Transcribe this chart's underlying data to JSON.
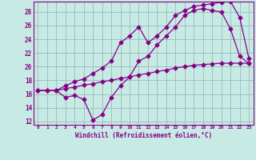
{
  "line1_x": [
    0,
    1,
    2,
    3,
    4,
    5,
    6,
    7,
    8,
    9,
    10,
    11,
    12,
    13,
    14,
    15,
    16,
    17,
    18,
    19,
    20,
    21,
    22,
    23
  ],
  "line1_y": [
    16.5,
    16.5,
    16.5,
    17.2,
    17.8,
    18.2,
    19.0,
    19.8,
    20.8,
    23.5,
    24.5,
    25.8,
    23.5,
    24.5,
    25.8,
    27.5,
    28.2,
    28.8,
    29.0,
    29.2,
    29.4,
    29.5,
    27.2,
    21.2
  ],
  "line2_x": [
    0,
    1,
    2,
    3,
    4,
    5,
    6,
    7,
    8,
    9,
    10,
    11,
    12,
    13,
    14,
    15,
    16,
    17,
    18,
    19,
    20,
    21,
    22,
    23
  ],
  "line2_y": [
    16.5,
    16.5,
    16.5,
    16.8,
    17.0,
    17.3,
    17.5,
    17.8,
    18.0,
    18.3,
    18.5,
    18.8,
    19.0,
    19.3,
    19.5,
    19.8,
    20.0,
    20.2,
    20.3,
    20.4,
    20.5,
    20.5,
    20.5,
    20.5
  ],
  "line3_x": [
    0,
    1,
    2,
    3,
    4,
    5,
    6,
    7,
    8,
    9,
    10,
    11,
    12,
    13,
    14,
    15,
    16,
    17,
    18,
    19,
    20,
    21,
    22,
    23
  ],
  "line3_y": [
    16.5,
    16.5,
    16.5,
    15.5,
    15.8,
    15.2,
    12.2,
    13.0,
    15.5,
    17.2,
    18.5,
    20.8,
    21.5,
    23.2,
    24.5,
    25.8,
    27.5,
    28.2,
    28.5,
    28.2,
    28.0,
    25.5,
    21.5,
    20.5
  ],
  "line_color": "#880088",
  "bg_color": "#c8eae4",
  "grid_color": "#99bbbb",
  "xlabel": "Windchill (Refroidissement éolien,°C)",
  "xlim_min": -0.5,
  "xlim_max": 23.5,
  "ylim_min": 11.5,
  "ylim_max": 29.5,
  "yticks": [
    12,
    14,
    16,
    18,
    20,
    22,
    24,
    26,
    28
  ],
  "xticks": [
    0,
    1,
    2,
    3,
    4,
    5,
    6,
    7,
    8,
    9,
    10,
    11,
    12,
    13,
    14,
    15,
    16,
    17,
    18,
    19,
    20,
    21,
    22,
    23
  ]
}
